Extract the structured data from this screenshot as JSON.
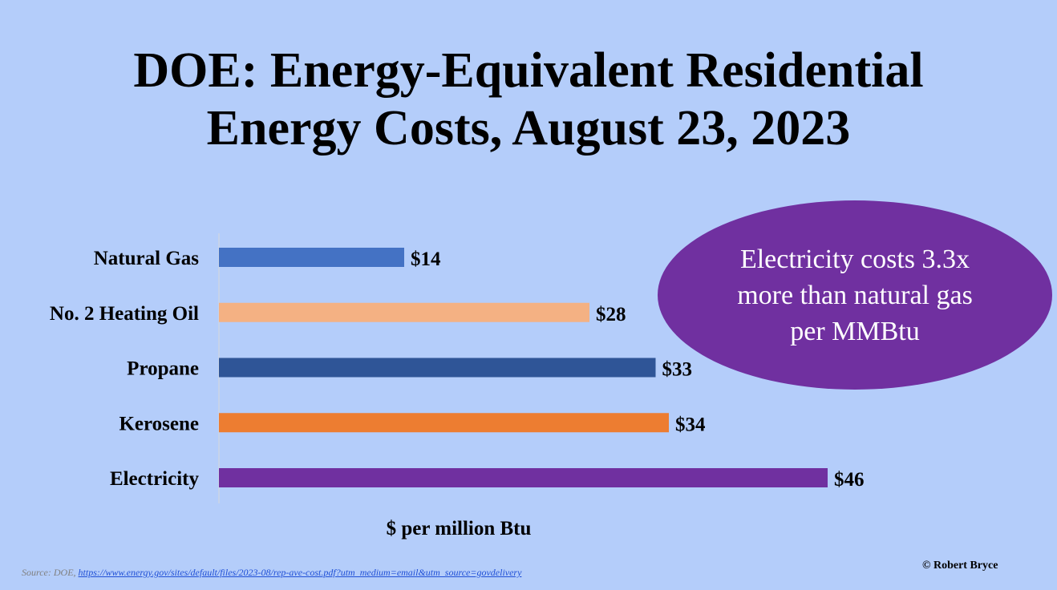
{
  "title": {
    "line1": "DOE: Energy-Equivalent Residential",
    "line2": "Energy Costs, August 23, 2023"
  },
  "chart_data": {
    "type": "bar",
    "orientation": "horizontal",
    "categories": [
      "Natural Gas",
      "No. 2 Heating Oil",
      "Propane",
      "Kerosene",
      "Electricity"
    ],
    "values": [
      14,
      28,
      33,
      34,
      46
    ],
    "data_labels": [
      "$14",
      "$28",
      "$33",
      "$34",
      "$46"
    ],
    "colors": [
      "#4472c4",
      "#f4b183",
      "#2f5597",
      "#ed7d31",
      "#7030a0"
    ],
    "xlabel": "$ per million Btu",
    "xlim": [
      0,
      50
    ],
    "grid": false
  },
  "callout": {
    "text": "Electricity costs 3.3x more than natural gas per MMBtu",
    "color": "#7030a0"
  },
  "source": {
    "prefix": "Source: DOE,",
    "url": "https://www.energy.gov/sites/default/files/2023-08/rep-ave-cost.pdf?utm_medium=email&utm_source=govdelivery"
  },
  "copyright": "© Robert Bryce",
  "background_color": "#b4cdfa"
}
